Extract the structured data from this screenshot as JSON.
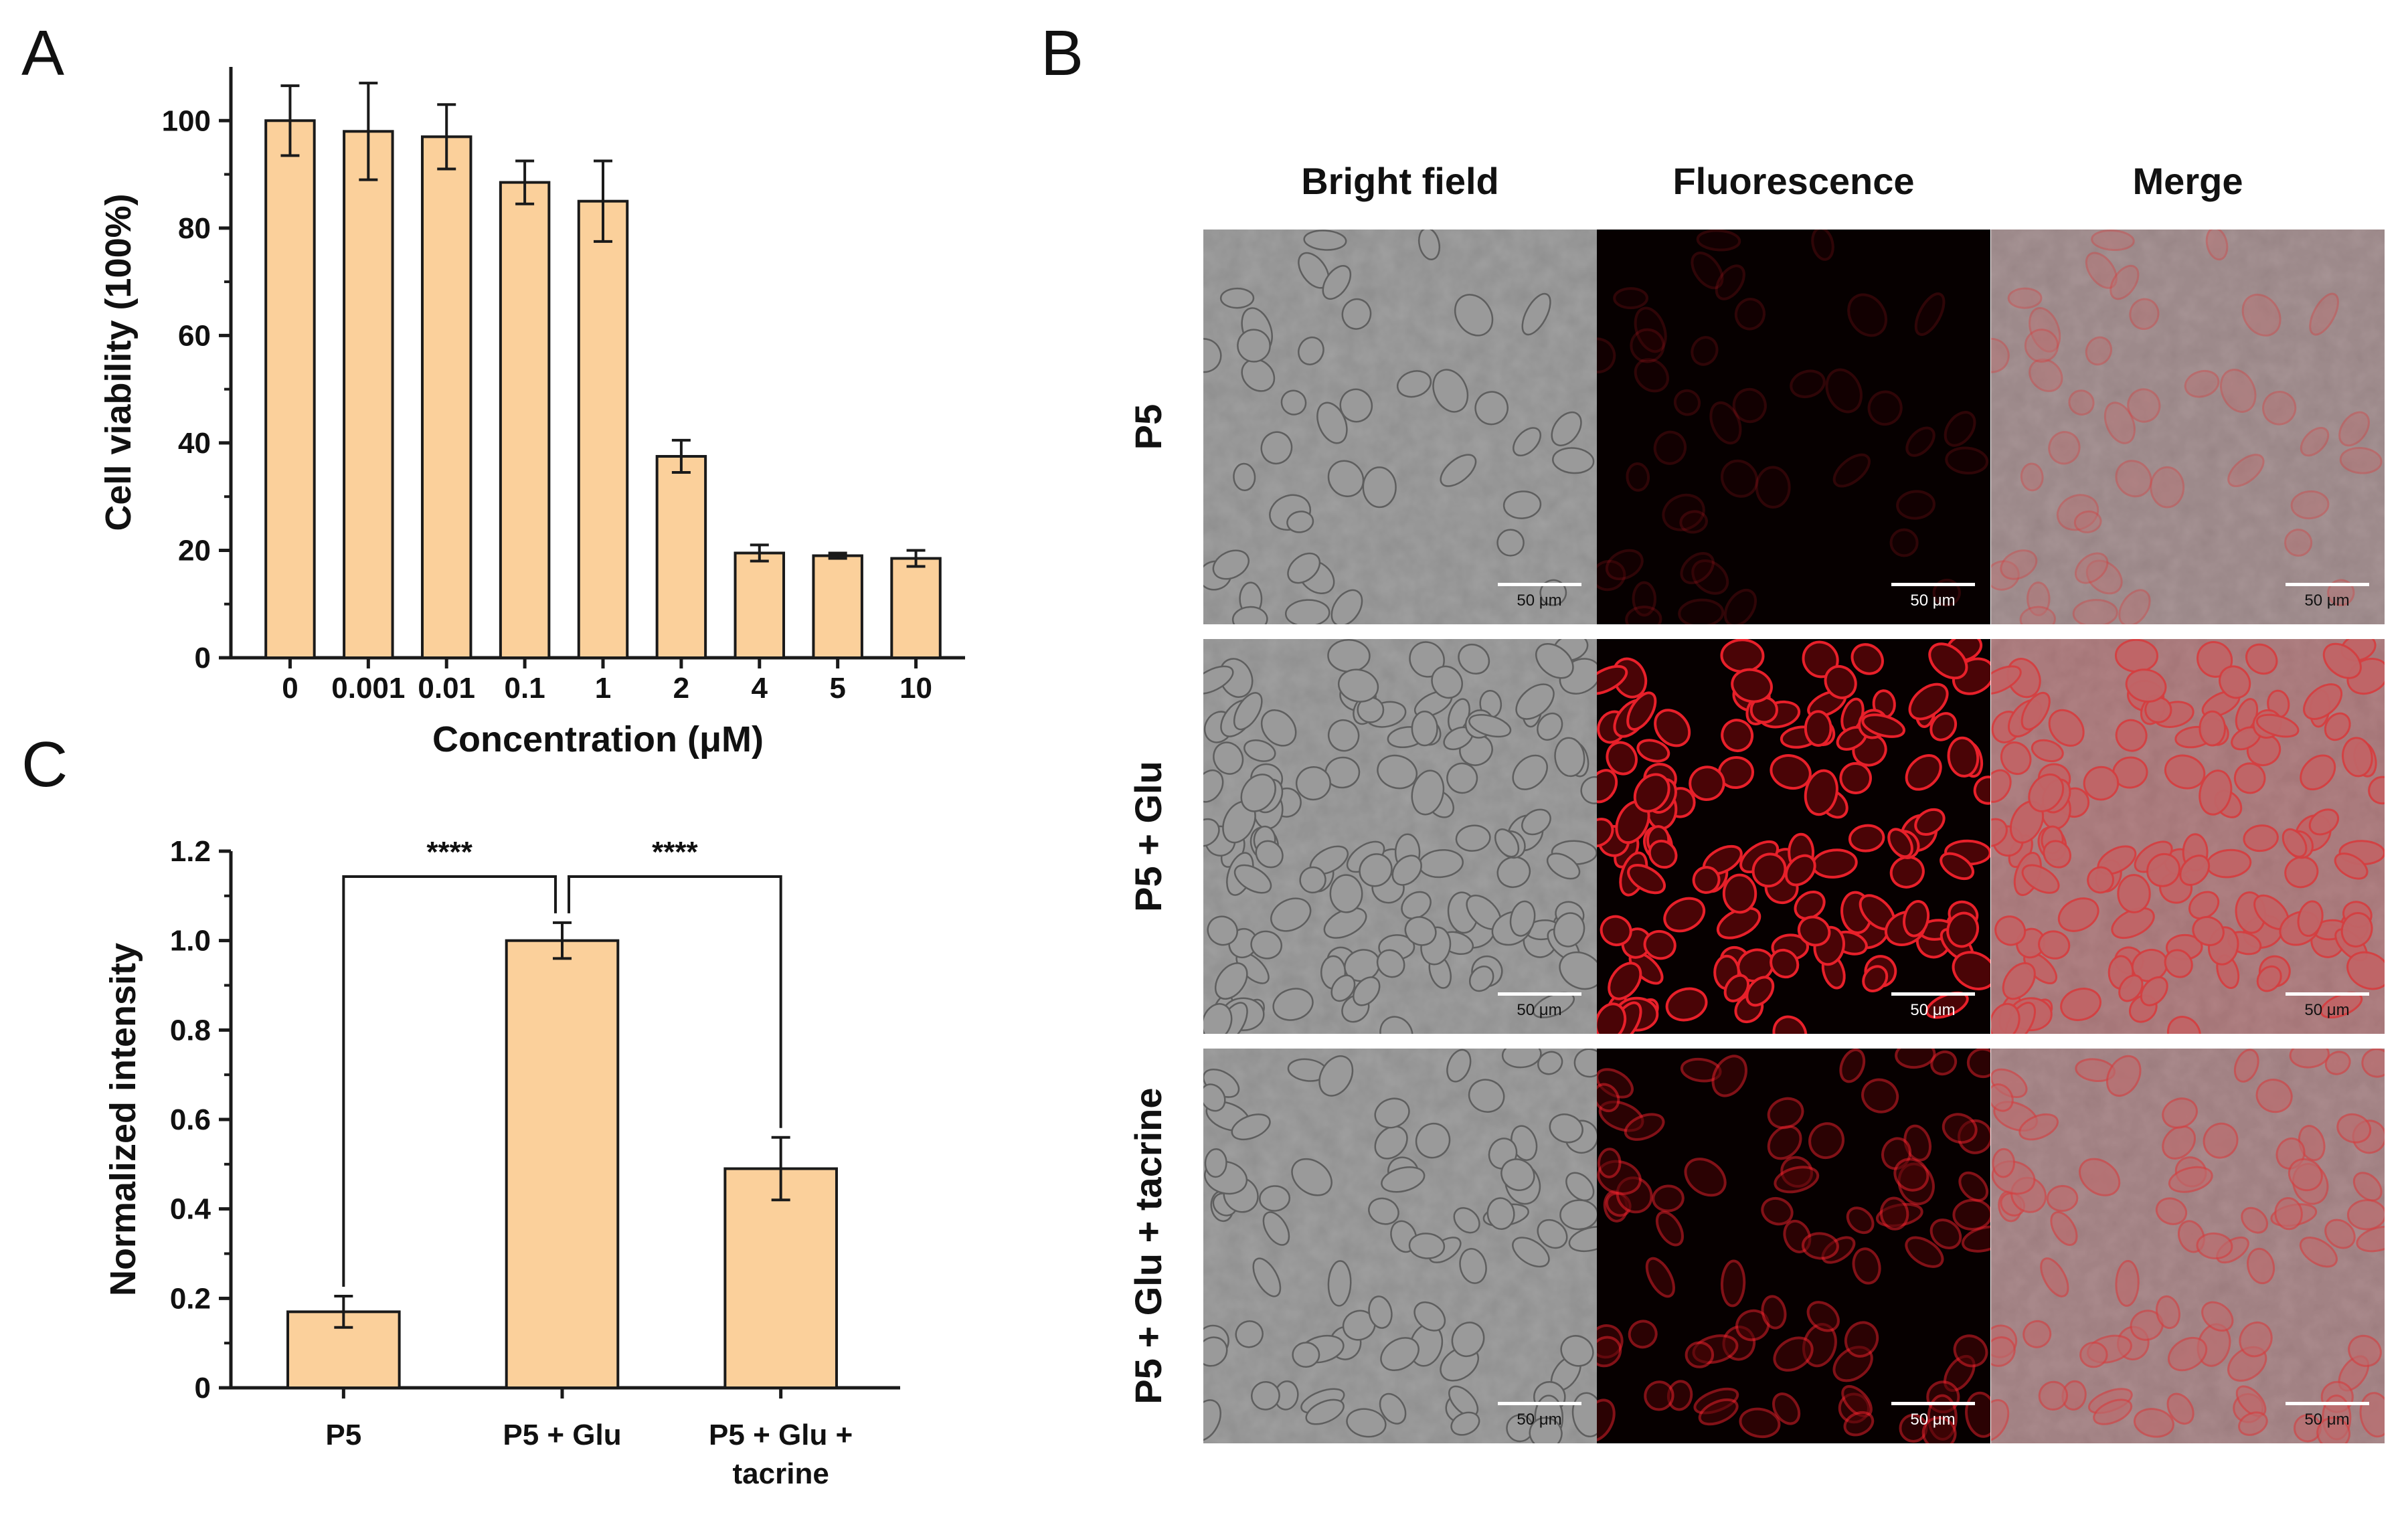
{
  "panel_labels": {
    "a": "A",
    "b": "B",
    "c": "C"
  },
  "colors": {
    "bar_fill": "#fbd09b",
    "bar_stroke": "#1a1a1a",
    "axis": "#1a1a1a",
    "fluor": "#e8202a"
  },
  "chart_data": [
    {
      "panel": "A",
      "type": "bar",
      "xlabel": "Concentration (μM)",
      "ylabel": "Cell viability (100%)",
      "categories": [
        "0",
        "0.001",
        "0.01",
        "0.1",
        "1",
        "2",
        "4",
        "5",
        "10"
      ],
      "values": [
        100,
        98,
        97,
        88.5,
        85,
        37.5,
        19.5,
        19,
        18.5
      ],
      "errors": [
        6.5,
        9,
        6,
        4,
        7.5,
        3,
        1.5,
        0.5,
        1.5
      ],
      "ylim": [
        0,
        110
      ],
      "yticks": [
        0,
        20,
        40,
        60,
        80,
        100
      ],
      "ytick_labels": [
        "0",
        "20",
        "40",
        "60",
        "80",
        "100"
      ]
    },
    {
      "panel": "C",
      "type": "bar",
      "xlabel": "",
      "ylabel": "Normalized intensity",
      "categories": [
        "P5",
        "P5 + Glu",
        "P5 + Glu + tacrine"
      ],
      "category_lines": [
        [
          "P5"
        ],
        [
          "P5 + Glu"
        ],
        [
          "P5 + Glu +",
          "tacrine"
        ]
      ],
      "values": [
        0.17,
        1.0,
        0.49
      ],
      "errors": [
        0.035,
        0.04,
        0.07
      ],
      "ylim": [
        0,
        1.2
      ],
      "yticks": [
        0,
        0.2,
        0.4,
        0.6,
        0.8,
        1.0,
        1.2
      ],
      "ytick_labels": [
        "0",
        "0.2",
        "0.4",
        "0.6",
        "0.8",
        "1.0",
        "1.2"
      ],
      "significance": [
        {
          "from": 0,
          "to": 1,
          "label": "****"
        },
        {
          "from": 1,
          "to": 2,
          "label": "****"
        }
      ]
    }
  ],
  "micrographs": {
    "columns": [
      "Bright field",
      "Fluorescence",
      "Merge"
    ],
    "rows": [
      "P5",
      "P5 + Glu",
      "P5 + Glu + tacrine"
    ],
    "scale_bar_label": "50 μm"
  }
}
